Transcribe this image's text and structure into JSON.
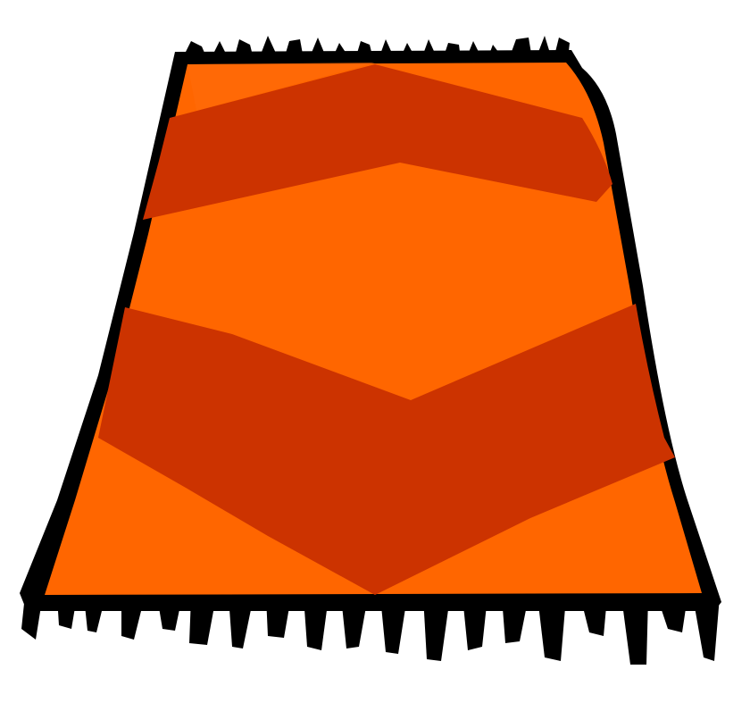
{
  "illustration": {
    "subject": "rug-icon",
    "colors": {
      "background": "#ffffff",
      "outline": "#000000",
      "rug_light": "#ff6600",
      "rug_dark": "#cc3300"
    },
    "pattern": {
      "dark_chevron_bands": 2,
      "fringe_edges": [
        "top",
        "bottom"
      ]
    }
  }
}
